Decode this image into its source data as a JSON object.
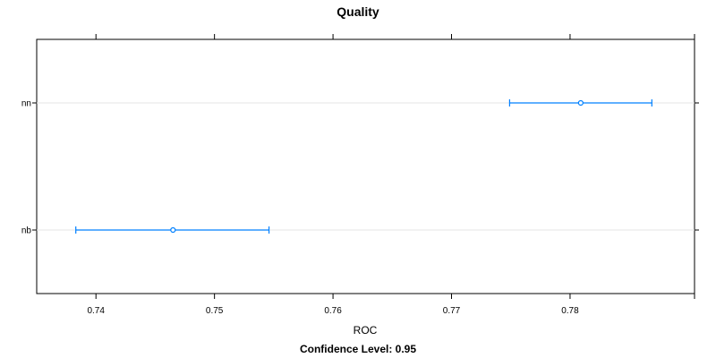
{
  "chart_data": {
    "type": "dotplot-interval",
    "title": "Quality",
    "xlabel": "ROC",
    "subtitle": "Confidence Level: 0.95",
    "xlim": [
      0.735,
      0.7905
    ],
    "x_ticks": [
      0.74,
      0.75,
      0.76,
      0.77,
      0.78
    ],
    "x_tick_labels": [
      "0.74",
      "0.75",
      "0.76",
      "0.77",
      "0.78"
    ],
    "categories": [
      "nn",
      "nb"
    ],
    "points": [
      {
        "label": "nn",
        "estimate": 0.7809,
        "lower": 0.7749,
        "upper": 0.7869
      },
      {
        "label": "nb",
        "estimate": 0.7465,
        "lower": 0.7383,
        "upper": 0.7546
      }
    ],
    "grid": "horizontal",
    "colors": {
      "series": "#0080FF",
      "grid": "#E6E6E6",
      "axis": "#000000"
    }
  }
}
